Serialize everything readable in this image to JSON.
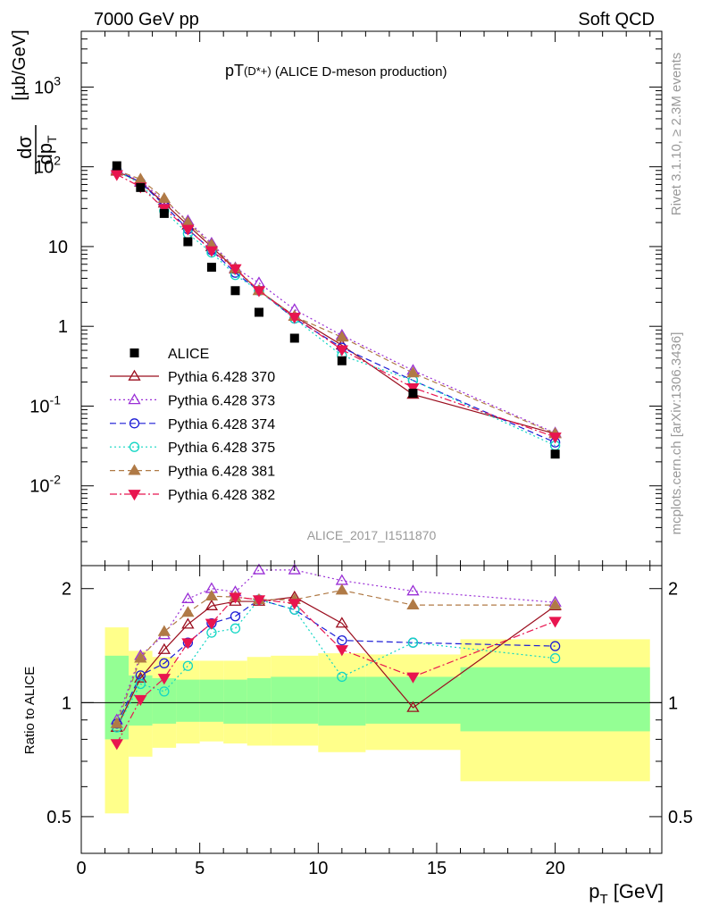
{
  "header": {
    "energy": "7000 GeV pp",
    "process": "Soft QCD",
    "title_main": "pT",
    "title_paren": "(D*+)",
    "title_rest": " (ALICE D-meson production)",
    "ref": "ALICE_2017_I1511870",
    "right_rivet": "Rivet 3.1.10, ≥ 2.3M events",
    "right_url": "mcplots.cern.ch [arXiv:1306.3436]"
  },
  "chart_data": [
    {
      "type": "scatter",
      "panel": "main",
      "yscale": "log",
      "xlim": [
        0,
        24.5
      ],
      "ylim": [
        0.001,
        5000
      ],
      "ylabel": "dσ/dp_T [µb/GeV]",
      "x_ticks": [
        "0",
        "5",
        "10",
        "15",
        "20"
      ],
      "y_ticks": [
        "10^-2",
        "10^-1",
        "1",
        "10",
        "10^2",
        "10^3"
      ],
      "data": {
        "name": "ALICE",
        "x": [
          1.5,
          2.5,
          3.5,
          4.5,
          5.5,
          6.5,
          7.5,
          9.0,
          11.0,
          14.0,
          20.0
        ],
        "y": [
          103,
          55,
          26,
          11.5,
          5.5,
          2.8,
          1.5,
          0.71,
          0.37,
          0.145,
          0.025
        ]
      },
      "series": [
        {
          "name": "Pythia 6.428 370",
          "color": "#9b0e1e",
          "dash": "",
          "marker": "tri-up-open",
          "y": [
            88,
            64,
            35,
            18.5,
            9.9,
            5.2,
            2.8,
            1.34,
            0.58,
            0.14,
            0.045
          ]
        },
        {
          "name": "Pythia 6.428 373",
          "color": "#9a2fd6",
          "dash": "2,3",
          "marker": "tri-up-open",
          "y": [
            93,
            65,
            38,
            21,
            11,
            5.4,
            3.5,
            1.62,
            0.77,
            0.28,
            0.046
          ]
        },
        {
          "name": "Pythia 6.428 374",
          "color": "#1d1dd6",
          "dash": "7,4",
          "marker": "circle-open",
          "y": [
            90,
            64,
            33,
            16.5,
            9.0,
            4.7,
            2.8,
            1.25,
            0.54,
            0.21,
            0.035
          ]
        },
        {
          "name": "Pythia 6.428 375",
          "color": "#11d6c4",
          "dash": "2,3",
          "marker": "circle-open",
          "y": [
            88,
            62,
            28,
            14.5,
            8.4,
            4.4,
            2.8,
            1.25,
            0.43,
            0.21,
            0.032
          ]
        },
        {
          "name": "Pythia 6.428 381",
          "color": "#b07a46",
          "dash": "6,4",
          "marker": "tri-up-filled",
          "y": [
            90,
            70,
            40,
            20,
            10.5,
            5.3,
            2.8,
            1.33,
            0.73,
            0.26,
            0.045
          ]
        },
        {
          "name": "Pythia 6.428 382",
          "color": "#e8154f",
          "dash": "8,3,2,3",
          "marker": "tri-down-filled",
          "y": [
            80,
            56,
            30,
            16.5,
            8.9,
            5.3,
            2.8,
            1.3,
            0.51,
            0.17,
            0.041
          ]
        }
      ]
    },
    {
      "type": "line",
      "panel": "ratio",
      "yscale": "log",
      "xlim": [
        0,
        24.5
      ],
      "ylim": [
        0.4,
        2.3
      ],
      "ylabel": "Ratio to ALICE",
      "xlabel": "p_T [GeV]",
      "y_ticks": [
        "0.5",
        "1",
        "2"
      ],
      "band_edges": [
        1,
        2,
        3,
        4,
        5,
        6,
        7,
        8,
        10,
        12,
        16,
        24
      ],
      "band_inner": [
        [
          0.8,
          1.33
        ],
        [
          0.87,
          1.18
        ],
        [
          0.88,
          1.16
        ],
        [
          0.89,
          1.15
        ],
        [
          0.89,
          1.15
        ],
        [
          0.88,
          1.15
        ],
        [
          0.88,
          1.16
        ],
        [
          0.88,
          1.17
        ],
        [
          0.87,
          1.17
        ],
        [
          0.88,
          1.17
        ],
        [
          0.84,
          1.24
        ]
      ],
      "band_outer": [
        [
          0.51,
          1.58
        ],
        [
          0.72,
          1.37
        ],
        [
          0.76,
          1.32
        ],
        [
          0.78,
          1.29
        ],
        [
          0.79,
          1.29
        ],
        [
          0.78,
          1.29
        ],
        [
          0.77,
          1.32
        ],
        [
          0.77,
          1.33
        ],
        [
          0.74,
          1.35
        ],
        [
          0.75,
          1.34
        ],
        [
          0.62,
          1.47
        ]
      ],
      "x": [
        1.5,
        2.5,
        3.5,
        4.5,
        5.5,
        6.5,
        7.5,
        9.0,
        11.0,
        14.0,
        20.0
      ],
      "series": [
        {
          "name": "Pythia 6.428 370",
          "y": [
            0.86,
            1.16,
            1.38,
            1.61,
            1.8,
            1.85,
            1.85,
            1.9,
            1.62,
            0.97,
            1.8
          ]
        },
        {
          "name": "Pythia 6.428 373",
          "y": [
            0.9,
            1.33,
            1.51,
            1.88,
            2.0,
            1.96,
            2.24,
            2.24,
            2.1,
            1.97,
            1.84
          ]
        },
        {
          "name": "Pythia 6.428 374",
          "y": [
            0.88,
            1.18,
            1.27,
            1.44,
            1.62,
            1.69,
            1.87,
            1.76,
            1.46,
            1.44,
            1.41
          ]
        },
        {
          "name": "Pythia 6.428 375",
          "y": [
            0.86,
            1.12,
            1.07,
            1.25,
            1.53,
            1.57,
            1.87,
            1.76,
            1.17,
            1.44,
            1.31
          ]
        },
        {
          "name": "Pythia 6.428 381",
          "y": [
            0.88,
            1.31,
            1.54,
            1.73,
            1.91,
            1.9,
            1.87,
            1.87,
            1.98,
            1.81,
            1.81
          ]
        },
        {
          "name": "Pythia 6.428 382",
          "y": [
            0.78,
            1.02,
            1.16,
            1.44,
            1.62,
            1.9,
            1.87,
            1.83,
            1.38,
            1.17,
            1.64
          ]
        }
      ]
    }
  ]
}
